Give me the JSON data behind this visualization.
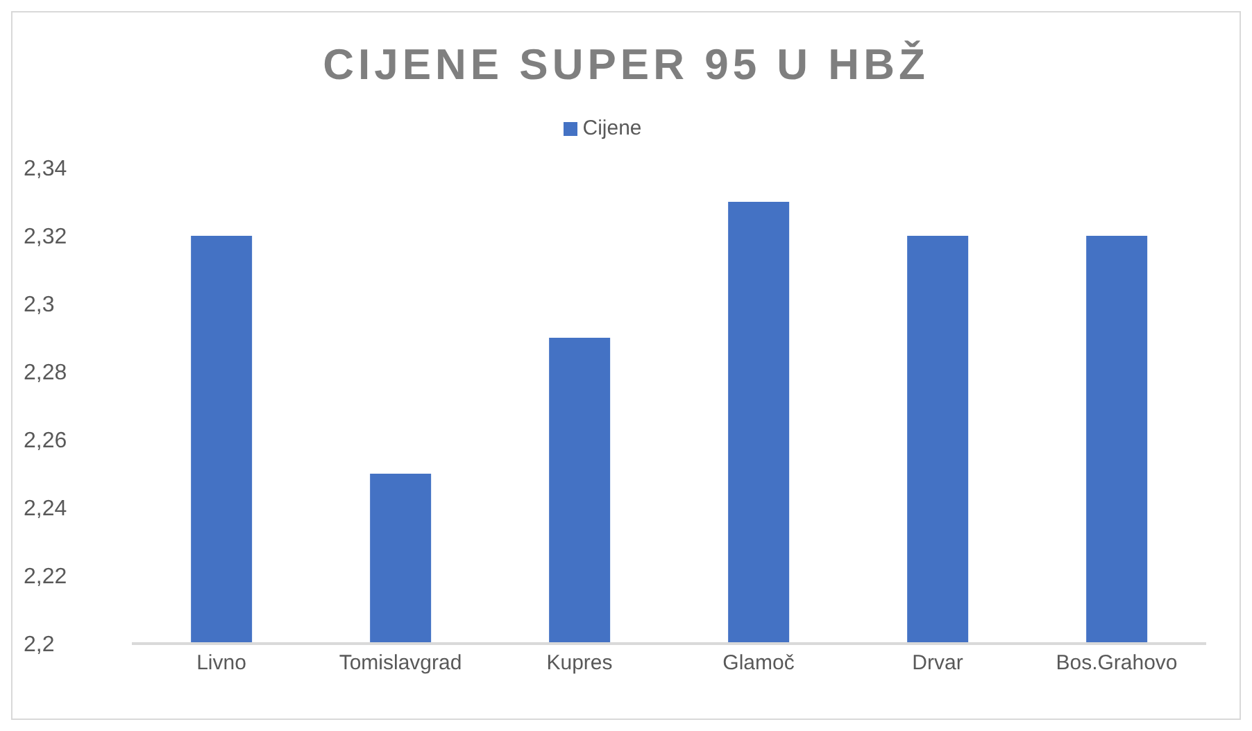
{
  "chart_data": {
    "type": "bar",
    "title": "CIJENE SUPER 95 U HBŽ",
    "categories": [
      "Livno",
      "Tomislavgrad",
      "Kupres",
      "Glamoč",
      "Drvar",
      "Bos.Grahovo"
    ],
    "series": [
      {
        "name": "Cijene",
        "color": "#4472c4",
        "values": [
          2.32,
          2.25,
          2.29,
          2.33,
          2.32,
          2.32
        ]
      }
    ],
    "ylim": [
      2.2,
      2.34
    ],
    "yticks": [
      {
        "value": 2.2,
        "label": "2,2"
      },
      {
        "value": 2.22,
        "label": "2,22"
      },
      {
        "value": 2.24,
        "label": "2,24"
      },
      {
        "value": 2.26,
        "label": "2,26"
      },
      {
        "value": 2.28,
        "label": "2,28"
      },
      {
        "value": 2.3,
        "label": "2,3"
      },
      {
        "value": 2.32,
        "label": "2,32"
      },
      {
        "value": 2.34,
        "label": "2,34"
      }
    ],
    "legend": "top"
  }
}
